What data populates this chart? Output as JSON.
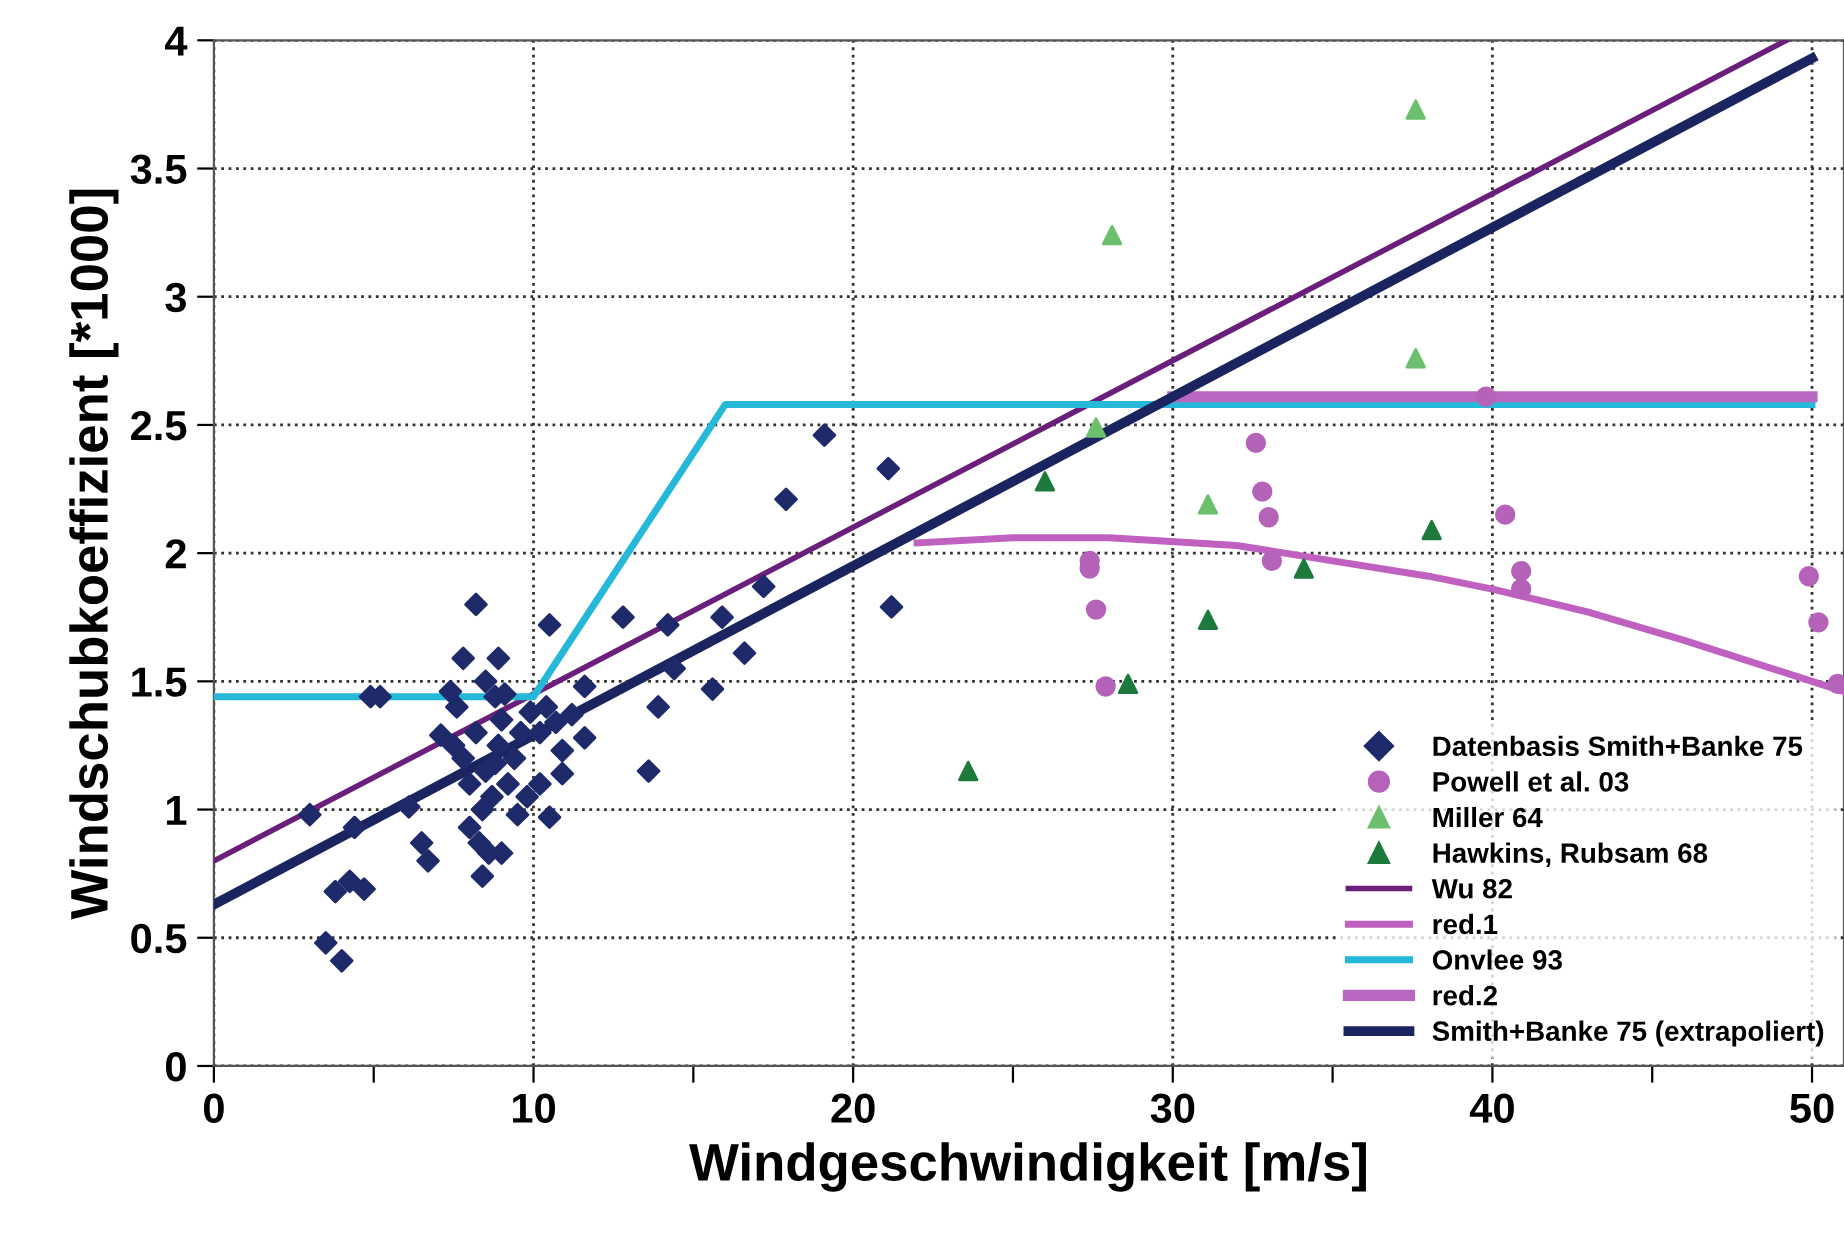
{
  "chart_data": {
    "type": "scatter",
    "xlabel": "Windgeschwindigkeit [m/s]",
    "ylabel": "Windschubkoeffizient [*1000]",
    "xlim": [
      0,
      51
    ],
    "ylim": [
      0,
      4
    ],
    "xticks": [
      0,
      {
        "value": 5,
        "label": null
      },
      10,
      {
        "value": 15,
        "label": null
      },
      20,
      {
        "value": 25,
        "label": null
      },
      30,
      {
        "value": 35,
        "label": null
      },
      40,
      {
        "value": 45,
        "label": null
      },
      50
    ],
    "yticks": [
      0,
      0.5,
      1,
      1.5,
      2,
      2.5,
      3,
      3.5,
      4
    ],
    "grid": true,
    "legend": "bottom right",
    "series": [
      {
        "name": "Datenbasis Smith+Banke 75",
        "marker": "diamond",
        "color": "#1f2a6b",
        "x": [
          3.0,
          3.5,
          4.0,
          3.8,
          4.25,
          4.7,
          4.4,
          4.9,
          5.2,
          6.1,
          6.5,
          6.7,
          7.1,
          7.4,
          7.6,
          7.8,
          8.9,
          8.2,
          8.5,
          8.8,
          8.0,
          8.3,
          8.6,
          9.0,
          8.4,
          10.5,
          10.5,
          10.2,
          12.8,
          14.2,
          14.4,
          13.9,
          13.6,
          15.6,
          15.9,
          16.6,
          17.2,
          17.9,
          19.1,
          11.6,
          11.6,
          10.9,
          10.9,
          10.7,
          11.2,
          7.8,
          8.0,
          8.2,
          8.5,
          8.7,
          8.9,
          9.0,
          9.2,
          9.4,
          9.6,
          9.8,
          9.5,
          8.4,
          9.1,
          9.9,
          10.2,
          10.4,
          7.5,
          8.8,
          21.1,
          21.2
        ],
        "values": [
          0.98,
          0.48,
          0.41,
          0.68,
          0.72,
          0.69,
          0.93,
          1.44,
          1.44,
          1.01,
          0.87,
          0.8,
          1.29,
          1.46,
          1.4,
          1.59,
          1.59,
          1.8,
          1.5,
          1.44,
          0.93,
          0.87,
          0.83,
          0.83,
          0.74,
          1.72,
          0.97,
          1.1,
          1.75,
          1.72,
          1.55,
          1.4,
          1.15,
          1.47,
          1.75,
          1.61,
          1.87,
          2.21,
          2.46,
          1.48,
          1.28,
          1.23,
          1.14,
          1.34,
          1.37,
          1.2,
          1.1,
          1.3,
          1.15,
          1.05,
          1.25,
          1.35,
          1.1,
          1.2,
          1.3,
          1.05,
          0.98,
          1.0,
          1.45,
          1.38,
          1.3,
          1.4,
          1.25,
          1.18,
          2.33,
          1.79
        ]
      },
      {
        "name": "Powell et al. 03",
        "marker": "circle",
        "color": "#b463b8",
        "x": [
          27.4,
          27.4,
          27.6,
          27.9,
          32.6,
          32.8,
          33.0,
          33.1,
          39.8,
          40.4,
          40.9,
          40.9,
          49.9,
          50.2,
          50.8
        ],
        "values": [
          1.94,
          1.97,
          1.78,
          1.48,
          2.43,
          2.24,
          2.14,
          1.97,
          2.61,
          2.15,
          1.93,
          1.86,
          1.91,
          1.73,
          1.49
        ]
      },
      {
        "name": "Miller 64",
        "marker": "triangle",
        "color": "#6cbf6c",
        "x": [
          28.1,
          37.6,
          37.6,
          27.6,
          31.1
        ],
        "values": [
          3.24,
          3.73,
          2.76,
          2.49,
          2.19
        ]
      },
      {
        "name": "Hawkins, Rubsam 68",
        "marker": "triangle",
        "color": "#1e7a3c",
        "x": [
          26.0,
          38.1,
          34.1,
          31.1,
          28.6,
          23.6
        ],
        "values": [
          2.28,
          2.09,
          1.94,
          1.74,
          1.49,
          1.15
        ]
      },
      {
        "name": "Wu 82",
        "type": "line",
        "color": "#6a1f7a",
        "x": [
          0,
          49.2
        ],
        "values": [
          0.8,
          4.0
        ]
      },
      {
        "name": "red.1",
        "type": "line",
        "color": "#c060c0",
        "x": [
          22,
          25,
          28,
          32,
          35,
          38,
          40,
          43,
          46,
          50,
          51
        ],
        "values": [
          2.04,
          2.06,
          2.06,
          2.03,
          1.97,
          1.91,
          1.86,
          1.77,
          1.66,
          1.5,
          1.46
        ]
      },
      {
        "name": "Onvlee 93",
        "type": "line",
        "color": "#25b8d8",
        "x": [
          0,
          10,
          16,
          50
        ],
        "values": [
          1.44,
          1.44,
          2.58,
          2.58
        ]
      },
      {
        "name": "red.2",
        "type": "line",
        "color": "#b868c0",
        "x": [
          30,
          50
        ],
        "values": [
          2.61,
          2.61
        ]
      },
      {
        "name": "Smith+Banke 75 (extrapoliert)",
        "type": "line",
        "color": "#1a2560",
        "x": [
          0,
          50
        ],
        "values": [
          0.63,
          3.93
        ]
      }
    ]
  }
}
